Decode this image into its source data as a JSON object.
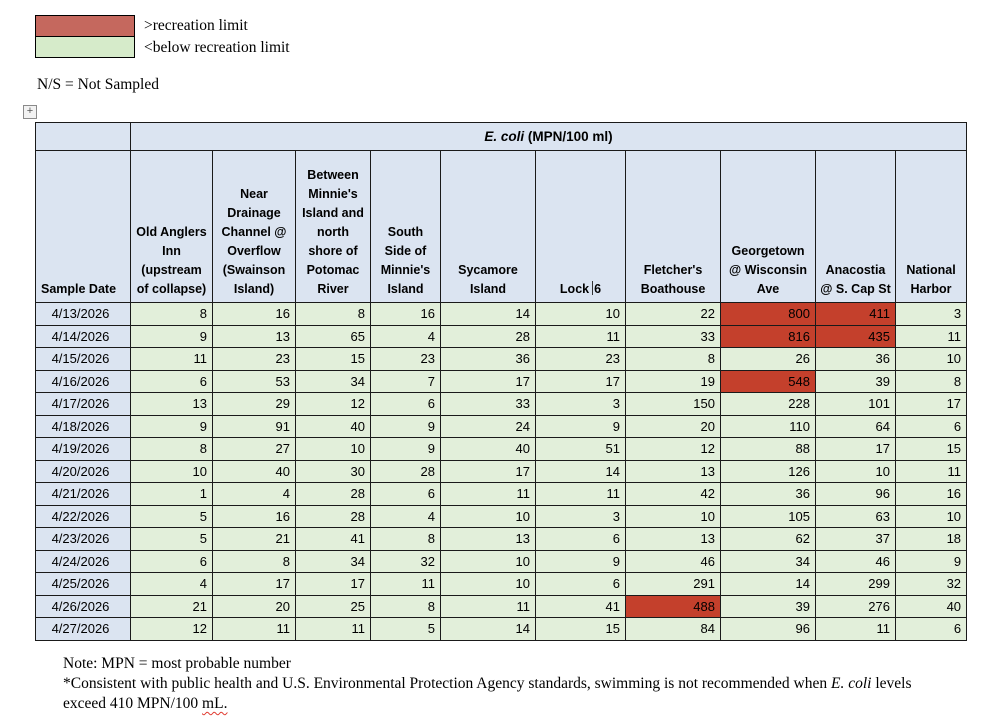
{
  "colors": {
    "header_blue": "#dbe4f1",
    "cell_green": "#e2efda",
    "cell_red": "#c4402c",
    "legend_red": "#c5685e",
    "legend_green": "#d6ebca"
  },
  "legend": {
    "above_limit_label": ">recreation limit",
    "below_limit_label": "<below recreation limit"
  },
  "ns_note": "N/S = Not Sampled",
  "icons": {
    "table_move_handle": "+"
  },
  "table": {
    "title_italic": "E. coli",
    "title_rest": " (MPN/100 ml)",
    "row_header": "Sample Date",
    "recreation_limit": 410,
    "cursor_column_index": 5,
    "cursor_split": [
      "Lock",
      "6"
    ],
    "columns": [
      "Old Anglers Inn (upstream of collapse)",
      "Near Drainage Channel @ Overflow (Swainson Island)",
      "Between Minnie's Island and north shore of Potomac River",
      "South Side of Minnie's Island",
      "Sycamore Island",
      "Lock 6",
      "Fletcher's Boathouse",
      "Georgetown @ Wisconsin Ave",
      "Anacostia @ S. Cap St",
      "National Harbor"
    ],
    "rows": [
      {
        "date": "4/13/2026",
        "values": [
          8,
          16,
          8,
          16,
          14,
          10,
          22,
          800,
          411,
          3
        ]
      },
      {
        "date": "4/14/2026",
        "values": [
          9,
          13,
          65,
          4,
          28,
          11,
          33,
          816,
          435,
          11
        ]
      },
      {
        "date": "4/15/2026",
        "values": [
          11,
          23,
          15,
          23,
          36,
          23,
          8,
          26,
          36,
          10
        ]
      },
      {
        "date": "4/16/2026",
        "values": [
          6,
          53,
          34,
          7,
          17,
          17,
          19,
          548,
          39,
          8
        ]
      },
      {
        "date": "4/17/2026",
        "values": [
          13,
          29,
          12,
          6,
          33,
          3,
          150,
          228,
          101,
          17
        ]
      },
      {
        "date": "4/18/2026",
        "values": [
          9,
          91,
          40,
          9,
          24,
          9,
          20,
          110,
          64,
          6
        ]
      },
      {
        "date": "4/19/2026",
        "values": [
          8,
          27,
          10,
          9,
          40,
          51,
          12,
          88,
          17,
          15
        ]
      },
      {
        "date": "4/20/2026",
        "values": [
          10,
          40,
          30,
          28,
          17,
          14,
          13,
          126,
          10,
          11
        ]
      },
      {
        "date": "4/21/2026",
        "values": [
          1,
          4,
          28,
          6,
          11,
          11,
          42,
          36,
          96,
          16
        ]
      },
      {
        "date": "4/22/2026",
        "values": [
          5,
          16,
          28,
          4,
          10,
          3,
          10,
          105,
          63,
          10
        ]
      },
      {
        "date": "4/23/2026",
        "values": [
          5,
          21,
          41,
          8,
          13,
          6,
          13,
          62,
          37,
          18
        ]
      },
      {
        "date": "4/24/2026",
        "values": [
          6,
          8,
          34,
          32,
          10,
          9,
          46,
          34,
          46,
          9
        ]
      },
      {
        "date": "4/25/2026",
        "values": [
          4,
          17,
          17,
          11,
          10,
          6,
          291,
          14,
          299,
          32
        ]
      },
      {
        "date": "4/26/2026",
        "values": [
          21,
          20,
          25,
          8,
          11,
          41,
          488,
          39,
          276,
          40
        ]
      },
      {
        "date": "4/27/2026",
        "values": [
          12,
          11,
          11,
          5,
          14,
          15,
          84,
          96,
          11,
          6
        ]
      }
    ]
  },
  "notes": {
    "line1": "Note: MPN = most probable number",
    "line2_pre": "*Consistent with public health and U.S. Environmental Protection Agency standards, swimming is not recommended when ",
    "line2_italic": "E. coli",
    "line2_mid": " levels exceed 410 MPN/100 ",
    "line2_squiggle": "mL."
  }
}
